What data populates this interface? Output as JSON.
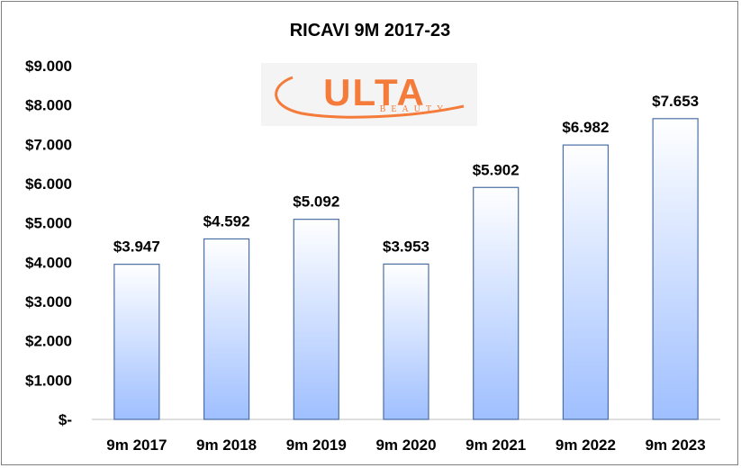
{
  "chart_data": {
    "type": "bar",
    "title": "RICAVI 9M 2017-23",
    "categories": [
      "9m 2017",
      "9m 2018",
      "9m 2019",
      "9m 2020",
      "9m 2021",
      "9m 2022",
      "9m 2023"
    ],
    "values": [
      3947,
      4592,
      5092,
      3953,
      5902,
      6982,
      7653
    ],
    "data_labels": [
      "$3.947",
      "$4.592",
      "$5.092",
      "$3.953",
      "$5.902",
      "$6.982",
      "$7.653"
    ],
    "yticks": [
      "$-",
      "$1.000",
      "$2.000",
      "$3.000",
      "$4.000",
      "$5.000",
      "$6.000",
      "$7.000",
      "$8.000",
      "$9.000"
    ],
    "ylim": [
      0,
      9000
    ],
    "grid": false,
    "legend": "none",
    "bar_color_top": "#ffffff",
    "bar_color_bottom": "#9fbfff",
    "bar_border": "#4a6fa5"
  },
  "logo": {
    "text": "ULTA",
    "subtext": "BEAUTY",
    "color": "#f47b3a"
  }
}
